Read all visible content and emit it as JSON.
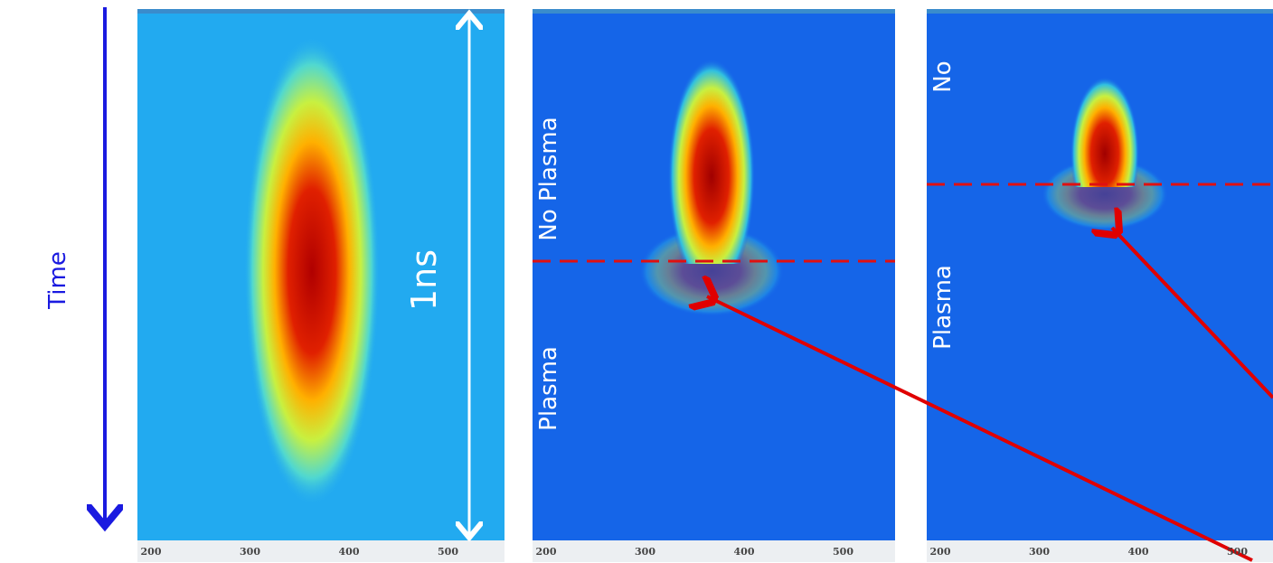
{
  "labels": {
    "time": "Time",
    "duration": "1ns"
  },
  "panels": [
    {
      "axis_ticks": [
        200,
        300,
        400,
        500
      ]
    },
    {
      "label_top": "No Plasma",
      "label_bottom": "Plasma",
      "axis_ticks": [
        200,
        300,
        400,
        500
      ]
    },
    {
      "label_top": "No",
      "label_bottom": "Plasma",
      "axis_ticks": [
        200,
        300,
        400,
        500
      ]
    }
  ]
}
